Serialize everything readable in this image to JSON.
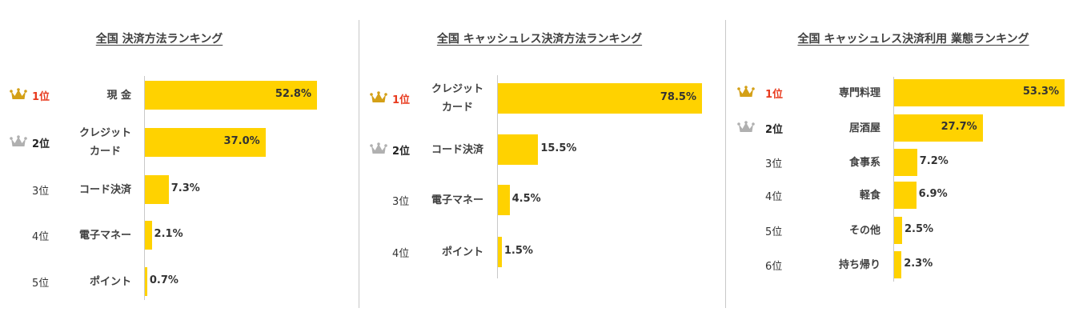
{
  "colors": {
    "bar": "#ffd200",
    "rank1": "#e83a1e",
    "gold_crown": "#d4a017",
    "silver_crown": "#b0b0b0"
  },
  "chart_data": [
    {
      "type": "bar",
      "orientation": "horizontal",
      "title": "全国 決済方法ランキング",
      "ranks": [
        "1位",
        "2位",
        "3位",
        "4位",
        "5位"
      ],
      "categories": [
        [
          "現 金"
        ],
        [
          "クレジット",
          "カード"
        ],
        [
          "コード決済"
        ],
        [
          "電子マネー"
        ],
        [
          "ポイント"
        ]
      ],
      "values": [
        52.8,
        37.0,
        7.3,
        2.1,
        0.7
      ],
      "labels": [
        "52.8%",
        "37.0%",
        "7.3%",
        "2.1%",
        "0.7%"
      ],
      "xlim": [
        0,
        52.8
      ],
      "crowns": [
        "gold",
        "silver",
        null,
        null,
        null
      ]
    },
    {
      "type": "bar",
      "orientation": "horizontal",
      "title": "全国 キャッシュレス決済方法ランキング",
      "ranks": [
        "1位",
        "2位",
        "3位",
        "4位"
      ],
      "categories": [
        [
          "クレジット",
          "カード"
        ],
        [
          "コード決済"
        ],
        [
          "電子マネー"
        ],
        [
          "ポイント"
        ]
      ],
      "values": [
        78.5,
        15.5,
        4.5,
        1.5
      ],
      "labels": [
        "78.5%",
        "15.5%",
        "4.5%",
        "1.5%"
      ],
      "xlim": [
        0,
        78.5
      ],
      "crowns": [
        "gold",
        "silver",
        null,
        null
      ]
    },
    {
      "type": "bar",
      "orientation": "horizontal",
      "title": "全国 キャッシュレス決済利用 業態ランキング",
      "ranks": [
        "1位",
        "2位",
        "3位",
        "4位",
        "5位",
        "6位"
      ],
      "categories": [
        [
          "専門料理"
        ],
        [
          "居酒屋"
        ],
        [
          "食事系"
        ],
        [
          "軽食"
        ],
        [
          "その他"
        ],
        [
          "持ち帰り"
        ]
      ],
      "values": [
        53.3,
        27.7,
        7.2,
        6.9,
        2.5,
        2.3
      ],
      "labels": [
        "53.3%",
        "27.7%",
        "7.2%",
        "6.9%",
        "2.5%",
        "2.3%"
      ],
      "xlim": [
        0,
        53.3
      ],
      "crowns": [
        "gold",
        "silver",
        null,
        null,
        null,
        null
      ]
    }
  ]
}
